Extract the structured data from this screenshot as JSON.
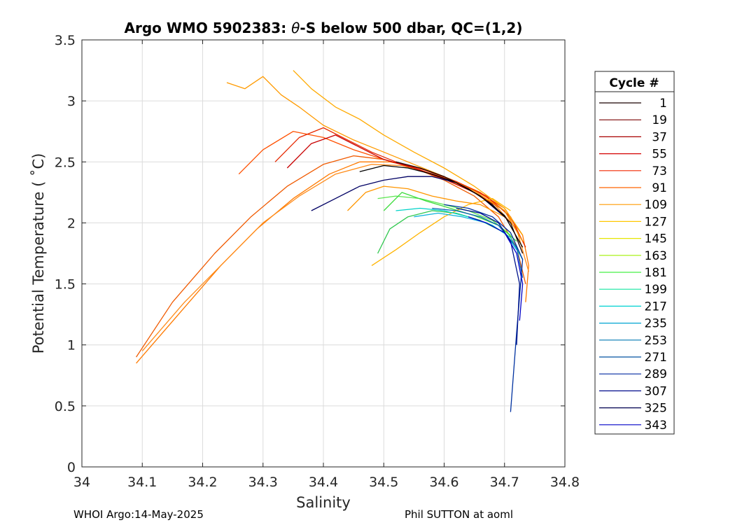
{
  "title_prefix": "Argo WMO 5902383: ",
  "title_theta": "θ",
  "title_suffix": "-S below 500 dbar,  QC=(1,2)",
  "footer_left": "WHOI Argo:14-May-2025",
  "footer_right": "Phil SUTTON at aoml",
  "chart_data": {
    "type": "line",
    "xlabel": "Salinity",
    "ylabel": "Potential Temperature ( ˚C)",
    "xlim": [
      34.0,
      34.8
    ],
    "ylim": [
      0,
      3.5
    ],
    "xticks": [
      "34",
      "34.1",
      "34.2",
      "34.3",
      "34.4",
      "34.5",
      "34.6",
      "34.7",
      "34.8"
    ],
    "yticks": [
      "0",
      "0.5",
      "1",
      "1.5",
      "2",
      "2.5",
      "3",
      "3.5"
    ],
    "grid": true,
    "legend": {
      "title": "Cycle #",
      "placement": "outside-right",
      "entries": [
        {
          "label": "1",
          "color": "#1a0000"
        },
        {
          "label": "19",
          "color": "#7a0000"
        },
        {
          "label": "37",
          "color": "#a80000"
        },
        {
          "label": "55",
          "color": "#d40000"
        },
        {
          "label": "73",
          "color": "#f22800"
        },
        {
          "label": "91",
          "color": "#ff6400"
        },
        {
          "label": "109",
          "color": "#ff9a00"
        },
        {
          "label": "127",
          "color": "#ffc800"
        },
        {
          "label": "145",
          "color": "#e6e600"
        },
        {
          "label": "163",
          "color": "#a0f000"
        },
        {
          "label": "181",
          "color": "#46f046"
        },
        {
          "label": "199",
          "color": "#14e6a0"
        },
        {
          "label": "217",
          "color": "#00d2d2"
        },
        {
          "label": "235",
          "color": "#00a5d2"
        },
        {
          "label": "253",
          "color": "#0078b4"
        },
        {
          "label": "271",
          "color": "#0050a0"
        },
        {
          "label": "289",
          "color": "#0028a0"
        },
        {
          "label": "307",
          "color": "#000a8c"
        },
        {
          "label": "325",
          "color": "#000050"
        },
        {
          "label": "343",
          "color": "#0000c8"
        }
      ]
    },
    "series": [
      {
        "color": "#ff7a00",
        "x": [
          34.09,
          34.16,
          34.23,
          34.29,
          34.35,
          34.41,
          34.46,
          34.51,
          34.56,
          34.61,
          34.66,
          34.7,
          34.73,
          34.74,
          34.735
        ],
        "y": [
          0.85,
          1.25,
          1.65,
          1.95,
          2.2,
          2.4,
          2.5,
          2.5,
          2.45,
          2.36,
          2.25,
          2.1,
          1.9,
          1.65,
          1.35
        ]
      },
      {
        "color": "#f05a00",
        "x": [
          34.09,
          34.15,
          34.22,
          34.28,
          34.34,
          34.4,
          34.45,
          34.5,
          34.55,
          34.6,
          34.65,
          34.69,
          34.72,
          34.735
        ],
        "y": [
          0.9,
          1.35,
          1.75,
          2.05,
          2.3,
          2.48,
          2.55,
          2.52,
          2.45,
          2.35,
          2.22,
          2.05,
          1.8,
          1.5
        ]
      },
      {
        "color": "#ff8c1a",
        "x": [
          34.1,
          34.17,
          34.24,
          34.3,
          34.36,
          34.42,
          34.48,
          34.53,
          34.58,
          34.63,
          34.68,
          34.72,
          34.74
        ],
        "y": [
          0.95,
          1.35,
          1.7,
          2.0,
          2.22,
          2.4,
          2.48,
          2.47,
          2.4,
          2.3,
          2.17,
          1.95,
          1.6
        ]
      },
      {
        "color": "#ff5000",
        "x": [
          34.26,
          34.3,
          34.35,
          34.4,
          34.45,
          34.5,
          34.55,
          34.6,
          34.65,
          34.7,
          34.73
        ],
        "y": [
          2.4,
          2.6,
          2.75,
          2.7,
          2.6,
          2.52,
          2.45,
          2.37,
          2.27,
          2.12,
          1.9
        ]
      },
      {
        "color": "#e62800",
        "x": [
          34.32,
          34.36,
          34.4,
          34.44,
          34.48,
          34.52,
          34.57,
          34.62,
          34.67,
          34.71,
          34.735
        ],
        "y": [
          2.5,
          2.7,
          2.78,
          2.68,
          2.58,
          2.5,
          2.43,
          2.34,
          2.22,
          2.05,
          1.8
        ]
      },
      {
        "color": "#c80000",
        "x": [
          34.34,
          34.38,
          34.42,
          34.46,
          34.5,
          34.55,
          34.6,
          34.65,
          34.7,
          34.73
        ],
        "y": [
          2.45,
          2.65,
          2.72,
          2.62,
          2.52,
          2.45,
          2.36,
          2.25,
          2.1,
          1.85
        ]
      },
      {
        "color": "#ff9a00",
        "x": [
          34.24,
          34.27,
          34.3,
          34.33,
          34.36,
          34.4,
          34.45,
          34.5,
          34.55,
          34.6,
          34.65,
          34.7,
          34.73
        ],
        "y": [
          3.15,
          3.1,
          3.2,
          3.05,
          2.95,
          2.8,
          2.68,
          2.58,
          2.48,
          2.38,
          2.26,
          2.1,
          1.85
        ]
      },
      {
        "color": "#ffaa00",
        "x": [
          34.35,
          34.38,
          34.42,
          34.46,
          34.5,
          34.55,
          34.6,
          34.65,
          34.7,
          34.73
        ],
        "y": [
          3.25,
          3.1,
          2.95,
          2.85,
          2.72,
          2.58,
          2.45,
          2.3,
          2.12,
          1.9
        ]
      },
      {
        "color": "#ffb400",
        "x": [
          34.48,
          34.52,
          34.56,
          34.6,
          34.64,
          34.68,
          34.71
        ],
        "y": [
          1.65,
          1.78,
          1.92,
          2.05,
          2.15,
          2.2,
          2.1
        ]
      },
      {
        "color": "#ff9600",
        "x": [
          34.44,
          34.47,
          34.5,
          34.54,
          34.58,
          34.62,
          34.66,
          34.7
        ],
        "y": [
          2.1,
          2.25,
          2.3,
          2.28,
          2.22,
          2.18,
          2.15,
          2.05
        ]
      },
      {
        "color": "#5ae650",
        "x": [
          34.49,
          34.52,
          34.56,
          34.6,
          34.64,
          34.68,
          34.71
        ],
        "y": [
          2.2,
          2.22,
          2.2,
          2.15,
          2.1,
          2.02,
          1.9
        ]
      },
      {
        "color": "#3cdc3c",
        "x": [
          34.5,
          34.53,
          34.57,
          34.61,
          34.65,
          34.69,
          34.72
        ],
        "y": [
          2.1,
          2.25,
          2.18,
          2.12,
          2.06,
          1.98,
          1.85
        ]
      },
      {
        "color": "#32c850",
        "x": [
          34.49,
          34.51,
          34.54,
          34.58,
          34.62,
          34.66,
          34.7
        ],
        "y": [
          1.75,
          1.95,
          2.05,
          2.1,
          2.08,
          2.02,
          1.92
        ]
      },
      {
        "color": "#00d2c8",
        "x": [
          34.52,
          34.56,
          34.6,
          34.64,
          34.68,
          34.71,
          34.73
        ],
        "y": [
          2.1,
          2.12,
          2.1,
          2.05,
          1.98,
          1.88,
          1.7
        ]
      },
      {
        "color": "#14b4dc",
        "x": [
          34.55,
          34.59,
          34.63,
          34.67,
          34.7,
          34.72
        ],
        "y": [
          2.05,
          2.08,
          2.05,
          2.0,
          1.92,
          1.78
        ]
      },
      {
        "color": "#0a64b4",
        "x": [
          34.58,
          34.62,
          34.66,
          34.69,
          34.72,
          34.73
        ],
        "y": [
          2.12,
          2.1,
          2.05,
          1.98,
          1.8,
          1.55
        ]
      },
      {
        "color": "#0032a0",
        "x": [
          34.6,
          34.64,
          34.68,
          34.71,
          34.73,
          34.72,
          34.71
        ],
        "y": [
          2.15,
          2.12,
          2.05,
          1.92,
          1.7,
          1.1,
          0.45
        ]
      },
      {
        "color": "#00148c",
        "x": [
          34.62,
          34.66,
          34.69,
          34.71,
          34.725,
          34.72
        ],
        "y": [
          2.12,
          2.08,
          2.0,
          1.85,
          1.5,
          1.0
        ]
      },
      {
        "color": "#0000c8",
        "x": [
          34.64,
          34.67,
          34.7,
          34.72,
          34.73,
          34.725
        ],
        "y": [
          2.05,
          2.0,
          1.92,
          1.75,
          1.5,
          1.2
        ]
      },
      {
        "color": "#000064",
        "x": [
          34.38,
          34.42,
          34.46,
          34.5,
          34.54,
          34.58,
          34.62,
          34.66,
          34.7
        ],
        "y": [
          2.1,
          2.2,
          2.3,
          2.35,
          2.38,
          2.38,
          2.33,
          2.22,
          2.05
        ]
      },
      {
        "color": "#000000",
        "x": [
          34.46,
          34.5,
          34.54,
          34.58,
          34.62,
          34.66,
          34.7,
          34.73
        ],
        "y": [
          2.42,
          2.47,
          2.45,
          2.4,
          2.33,
          2.22,
          2.06,
          1.8
        ]
      },
      {
        "color": "#1e0000",
        "x": [
          34.52,
          34.56,
          34.6,
          34.64,
          34.68,
          34.71,
          34.73
        ],
        "y": [
          2.5,
          2.45,
          2.38,
          2.28,
          2.15,
          2.0,
          1.75
        ]
      }
    ]
  }
}
